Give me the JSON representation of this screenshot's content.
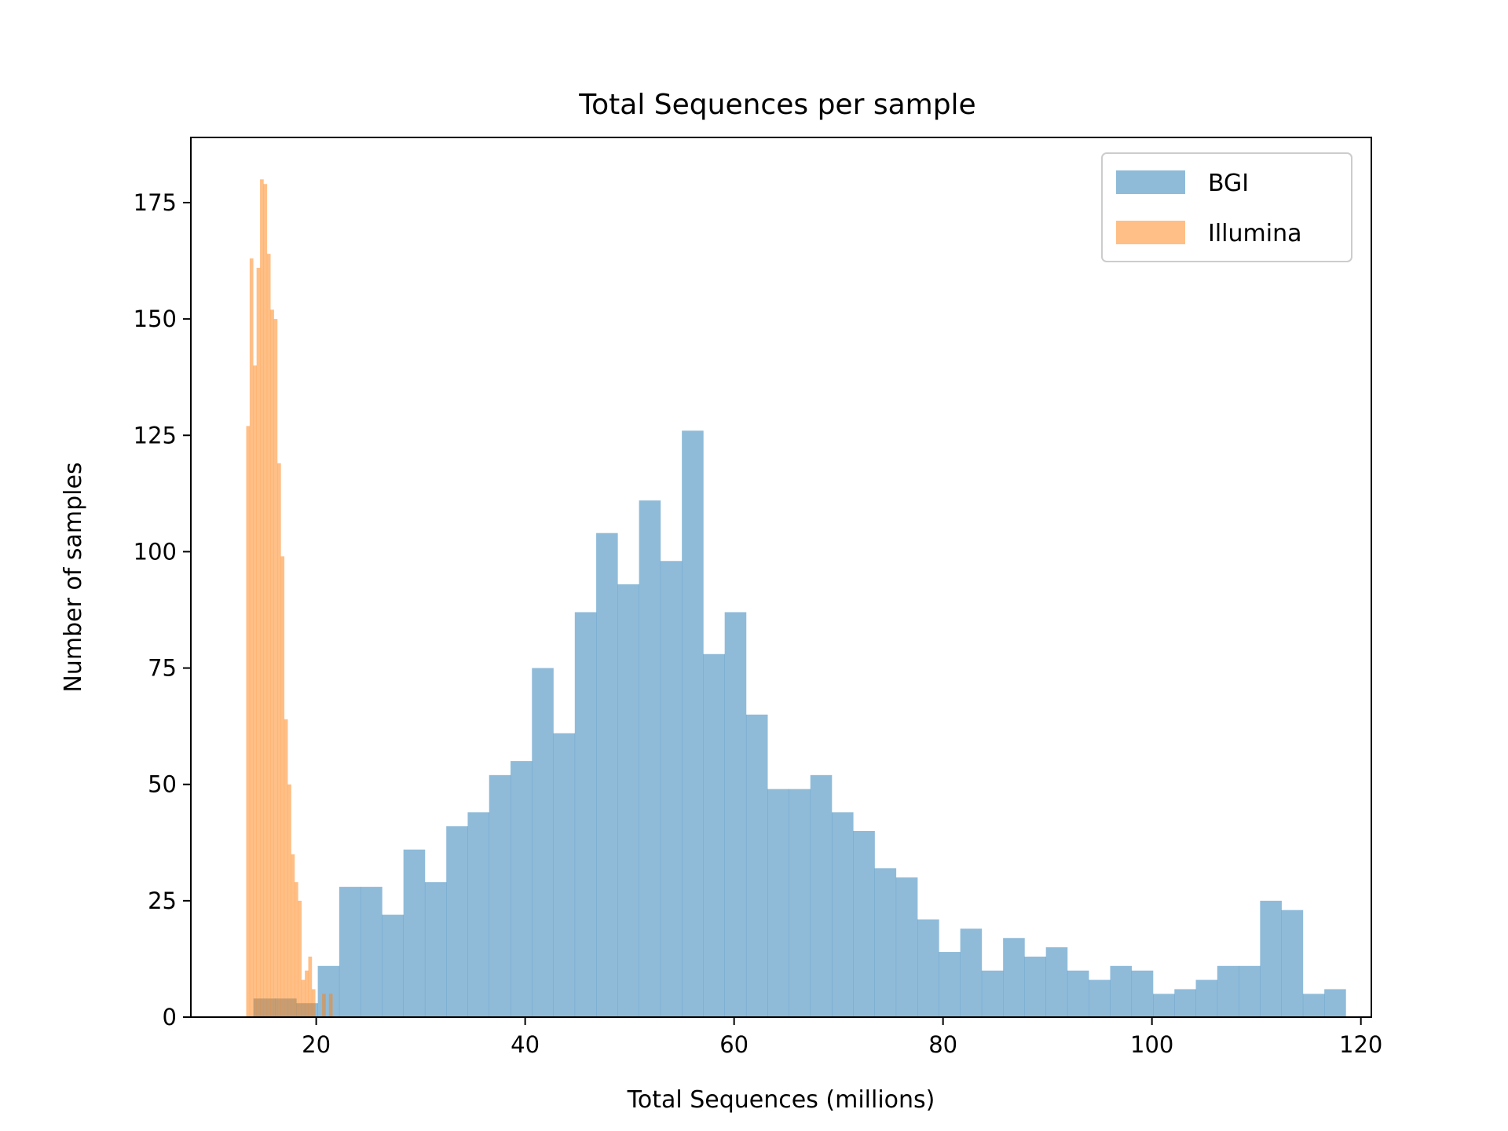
{
  "chart_data": {
    "type": "bar",
    "title": "Total Sequences per sample",
    "xlabel": "Total Sequences (millions)",
    "ylabel": "Number of samples",
    "xlim": [
      8,
      121
    ],
    "ylim": [
      0,
      189
    ],
    "xticks": [
      20,
      40,
      60,
      80,
      100,
      120
    ],
    "yticks": [
      0,
      25,
      50,
      75,
      100,
      125,
      150,
      175
    ],
    "grid": false,
    "legend_position": "top-right",
    "series": [
      {
        "name": "BGI",
        "color": "#1f77b4",
        "opacity": 0.5,
        "bin_start": 14.0,
        "bin_width": 2.05,
        "counts": [
          4,
          4,
          3,
          11,
          28,
          28,
          22,
          36,
          29,
          41,
          44,
          52,
          55,
          75,
          61,
          87,
          104,
          93,
          111,
          98,
          126,
          78,
          87,
          65,
          49,
          49,
          52,
          44,
          40,
          32,
          30,
          21,
          14,
          19,
          10,
          17,
          13,
          15,
          10,
          8,
          11,
          10,
          5,
          6,
          8,
          11,
          11,
          25,
          23,
          5,
          6
        ]
      },
      {
        "name": "Illumina",
        "color": "#ff7f0e",
        "opacity": 0.5,
        "bin_start": 13.3,
        "bin_width": 0.33,
        "counts": [
          127,
          163,
          140,
          161,
          180,
          179,
          164,
          152,
          150,
          119,
          99,
          64,
          50,
          35,
          29,
          25,
          8,
          10,
          13,
          6,
          0,
          0,
          5,
          0,
          5
        ]
      }
    ]
  }
}
